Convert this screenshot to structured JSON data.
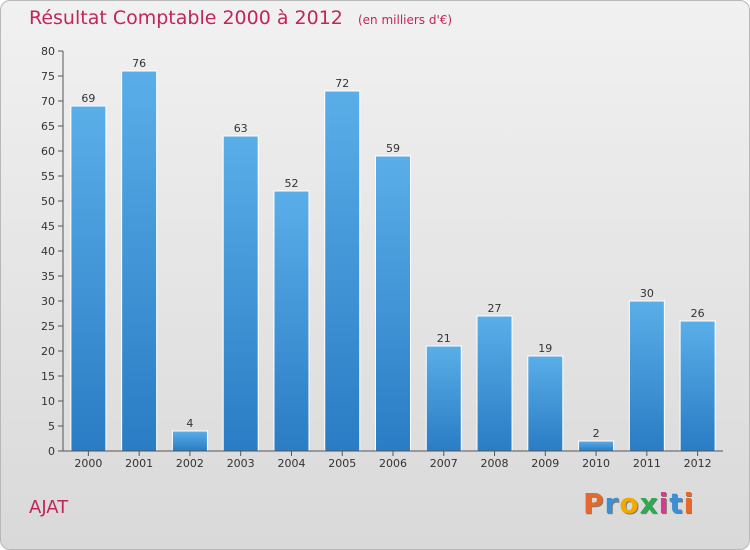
{
  "header": {
    "title": "Résultat Comptable 2000 à 2012",
    "subtitle": "(en milliers d'€)"
  },
  "footer": {
    "city": "AJAT",
    "brand": "Proxiti"
  },
  "colors": {
    "accent": "#c0265a",
    "bar_light": "#5aaee8",
    "bar_dark": "#2a7cc4",
    "brand_letters": [
      "#e8682a",
      "#3d8fd1",
      "#f2a900",
      "#2eaa4f",
      "#d63a8e",
      "#3d8fd1",
      "#e8682a"
    ]
  },
  "chart_data": {
    "type": "bar",
    "title": "Résultat Comptable 2000 à 2012",
    "unit": "en milliers d'€",
    "categories": [
      "2000",
      "2001",
      "2002",
      "2003",
      "2004",
      "2005",
      "2006",
      "2007",
      "2008",
      "2009",
      "2010",
      "2011",
      "2012"
    ],
    "values": [
      69,
      76,
      4,
      63,
      52,
      72,
      59,
      21,
      27,
      19,
      2,
      30,
      26
    ],
    "ylim": [
      0,
      80
    ],
    "yticks": [
      0,
      5,
      10,
      15,
      20,
      25,
      30,
      35,
      40,
      45,
      50,
      55,
      60,
      65,
      70,
      75,
      80
    ],
    "xlabel": "",
    "ylabel": "",
    "grid": false,
    "legend": "none"
  }
}
